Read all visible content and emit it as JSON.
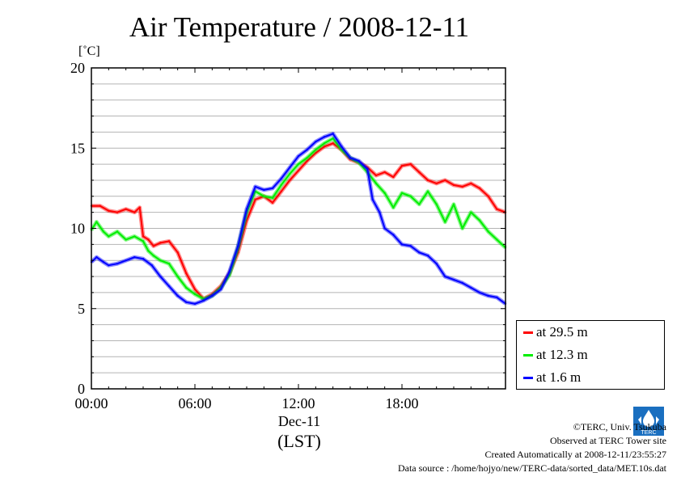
{
  "title": "Air Temperature / 2008-12-11",
  "unit_label": "[˚C]",
  "x_axis": {
    "tick_labels": [
      "00:00",
      "06:00",
      "12:00",
      "18:00"
    ],
    "date_label": "Dec-11",
    "tz_label": "(LST)"
  },
  "y_axis": {
    "tick_labels": [
      "0",
      "5",
      "10",
      "15",
      "20"
    ]
  },
  "legend": [
    {
      "label": "at 29.5 m",
      "color": "#ff0000"
    },
    {
      "label": "at 12.3 m",
      "color": "#00ee00"
    },
    {
      "label": "at 1.6 m",
      "color": "#0000ff"
    }
  ],
  "credits": {
    "copyright": "©TERC, Univ. Tsukuba",
    "observed": "Observed at TERC Tower site",
    "created": "Created Automatically at 2008-12-11/23:55:27",
    "source": "Data source : /home/hojyo/new/TERC-data/sorted_data/MET.10s.dat"
  },
  "logo_text": "TERC",
  "chart_data": {
    "type": "line",
    "title": "Air Temperature / 2008-12-11",
    "xlabel": "Dec-11 (LST)",
    "ylabel": "[˚C]",
    "xlim": [
      0,
      24
    ],
    "ylim": [
      0,
      20
    ],
    "x_unit": "hours",
    "grid": true,
    "legend_position": "outside-right-bottom",
    "series": [
      {
        "name": "at 29.5 m",
        "color": "#ff0000",
        "x": [
          0,
          0.5,
          1,
          1.5,
          2,
          2.5,
          2.8,
          3.0,
          3.3,
          3.6,
          4.0,
          4.5,
          5.0,
          5.5,
          6.0,
          6.5,
          7.0,
          7.5,
          8.0,
          8.5,
          9.0,
          9.5,
          10.0,
          10.5,
          11.0,
          11.5,
          12.0,
          12.5,
          13.0,
          13.5,
          14.0,
          14.5,
          15.0,
          15.5,
          16.0,
          16.5,
          17.0,
          17.5,
          18.0,
          18.5,
          19.0,
          19.5,
          20.0,
          20.5,
          21.0,
          21.5,
          22.0,
          22.5,
          23.0,
          23.5,
          24.0
        ],
        "y": [
          11.4,
          11.4,
          11.1,
          11.0,
          11.2,
          11.0,
          11.3,
          9.5,
          9.3,
          8.9,
          9.1,
          9.2,
          8.5,
          7.2,
          6.2,
          5.6,
          5.9,
          6.4,
          7.2,
          8.5,
          10.5,
          11.8,
          12.0,
          11.6,
          12.3,
          13.0,
          13.6,
          14.2,
          14.7,
          15.1,
          15.3,
          14.9,
          14.3,
          14.1,
          13.8,
          13.3,
          13.5,
          13.2,
          13.9,
          14.0,
          13.5,
          13.0,
          12.8,
          13.0,
          12.7,
          12.6,
          12.8,
          12.5,
          12.0,
          11.2,
          11.0
        ]
      },
      {
        "name": "at 12.3 m",
        "color": "#00ee00",
        "x": [
          0,
          0.3,
          0.7,
          1.0,
          1.5,
          2.0,
          2.5,
          3.0,
          3.3,
          3.6,
          4.0,
          4.5,
          5.0,
          5.5,
          6.0,
          6.5,
          7.0,
          7.5,
          8.0,
          8.5,
          9.0,
          9.5,
          10.0,
          10.5,
          11.0,
          11.5,
          12.0,
          12.5,
          13.0,
          13.5,
          14.0,
          14.5,
          15.0,
          15.5,
          16.0,
          16.5,
          17.0,
          17.5,
          18.0,
          18.5,
          19.0,
          19.5,
          20.0,
          20.5,
          21.0,
          21.5,
          22.0,
          22.5,
          23.0,
          23.5,
          24.0
        ],
        "y": [
          9.9,
          10.4,
          9.8,
          9.5,
          9.8,
          9.3,
          9.5,
          9.2,
          8.6,
          8.3,
          8.0,
          7.8,
          7.0,
          6.3,
          5.9,
          5.6,
          5.8,
          6.3,
          7.1,
          8.8,
          11.0,
          12.3,
          12.0,
          11.9,
          12.7,
          13.4,
          14.0,
          14.4,
          14.9,
          15.3,
          15.6,
          14.9,
          14.4,
          14.1,
          13.5,
          12.8,
          12.2,
          11.3,
          12.2,
          12.0,
          11.5,
          12.3,
          11.5,
          10.4,
          11.5,
          10.0,
          11.0,
          10.5,
          9.8,
          9.3,
          8.8
        ]
      },
      {
        "name": "at 1.6 m",
        "color": "#0000ff",
        "x": [
          0,
          0.3,
          0.7,
          1.0,
          1.5,
          2.0,
          2.5,
          3.0,
          3.5,
          4.0,
          4.5,
          5.0,
          5.5,
          6.0,
          6.5,
          7.0,
          7.5,
          8.0,
          8.5,
          9.0,
          9.5,
          10.0,
          10.5,
          11.0,
          11.5,
          12.0,
          12.5,
          13.0,
          13.5,
          14.0,
          14.5,
          15.0,
          15.5,
          16.0,
          16.3,
          16.7,
          17.0,
          17.5,
          18.0,
          18.5,
          19.0,
          19.5,
          20.0,
          20.5,
          21.0,
          21.5,
          22.0,
          22.5,
          23.0,
          23.5,
          24.0
        ],
        "y": [
          7.9,
          8.2,
          7.9,
          7.7,
          7.8,
          8.0,
          8.2,
          8.1,
          7.7,
          7.0,
          6.4,
          5.8,
          5.4,
          5.3,
          5.5,
          5.8,
          6.2,
          7.3,
          8.9,
          11.2,
          12.6,
          12.4,
          12.5,
          13.1,
          13.8,
          14.5,
          14.9,
          15.4,
          15.7,
          15.9,
          15.1,
          14.4,
          14.2,
          13.7,
          11.8,
          11.0,
          10.0,
          9.6,
          9.0,
          8.9,
          8.5,
          8.3,
          7.8,
          7.0,
          6.8,
          6.6,
          6.3,
          6.0,
          5.8,
          5.7,
          5.3
        ]
      }
    ]
  }
}
